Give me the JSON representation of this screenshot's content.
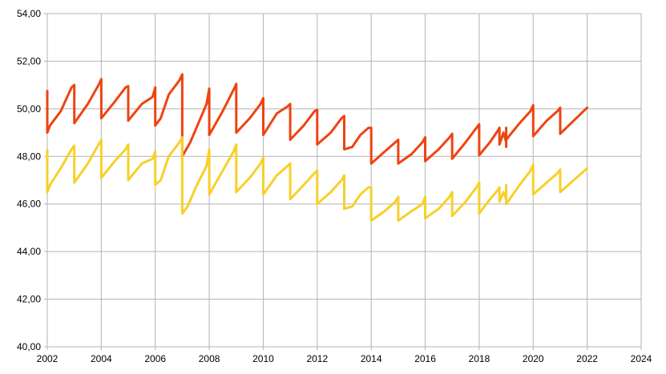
{
  "chart_data": {
    "type": "line",
    "title": "",
    "xlabel": "",
    "ylabel": "",
    "xlim": [
      2002,
      2024
    ],
    "ylim": [
      40,
      54
    ],
    "grid": true,
    "legend": "none",
    "x_ticks": [
      "2002",
      "2004",
      "2006",
      "2008",
      "2010",
      "2012",
      "2014",
      "2016",
      "2018",
      "2020",
      "2022",
      "2024"
    ],
    "y_ticks": [
      "40,00",
      "42,00",
      "44,00",
      "46,00",
      "48,00",
      "50,00",
      "52,00",
      "54,00"
    ],
    "series": [
      {
        "color": "#ee4411",
        "points": [
          [
            2002.0,
            50.75
          ],
          [
            2002.0,
            49.0
          ],
          [
            2002.1,
            49.3
          ],
          [
            2002.5,
            49.9
          ],
          [
            2002.9,
            50.9
          ],
          [
            2003.0,
            51.0
          ],
          [
            2003.0,
            49.4
          ],
          [
            2003.5,
            50.2
          ],
          [
            2003.9,
            51.0
          ],
          [
            2004.0,
            51.25
          ],
          [
            2004.0,
            49.6
          ],
          [
            2004.5,
            50.3
          ],
          [
            2004.9,
            50.9
          ],
          [
            2005.0,
            50.95
          ],
          [
            2005.0,
            49.5
          ],
          [
            2005.5,
            50.2
          ],
          [
            2005.9,
            50.5
          ],
          [
            2006.0,
            50.9
          ],
          [
            2006.0,
            49.3
          ],
          [
            2006.2,
            49.6
          ],
          [
            2006.5,
            50.6
          ],
          [
            2006.9,
            51.2
          ],
          [
            2007.0,
            51.45
          ],
          [
            2007.0,
            48.0
          ],
          [
            2007.3,
            48.6
          ],
          [
            2007.6,
            49.4
          ],
          [
            2007.9,
            50.2
          ],
          [
            2008.0,
            50.85
          ],
          [
            2008.0,
            48.9
          ],
          [
            2008.5,
            49.9
          ],
          [
            2008.9,
            50.8
          ],
          [
            2009.0,
            51.05
          ],
          [
            2009.0,
            49.0
          ],
          [
            2009.5,
            49.6
          ],
          [
            2009.9,
            50.2
          ],
          [
            2010.0,
            50.45
          ],
          [
            2010.0,
            48.9
          ],
          [
            2010.5,
            49.8
          ],
          [
            2010.9,
            50.1
          ],
          [
            2011.0,
            50.2
          ],
          [
            2011.0,
            48.7
          ],
          [
            2011.5,
            49.3
          ],
          [
            2011.9,
            49.9
          ],
          [
            2012.0,
            49.95
          ],
          [
            2012.0,
            48.5
          ],
          [
            2012.5,
            49.0
          ],
          [
            2012.9,
            49.6
          ],
          [
            2013.0,
            49.7
          ],
          [
            2013.0,
            48.3
          ],
          [
            2013.3,
            48.4
          ],
          [
            2013.6,
            48.9
          ],
          [
            2013.9,
            49.2
          ],
          [
            2014.0,
            49.2
          ],
          [
            2014.0,
            47.7
          ],
          [
            2014.5,
            48.2
          ],
          [
            2014.9,
            48.6
          ],
          [
            2015.0,
            48.7
          ],
          [
            2015.0,
            47.7
          ],
          [
            2015.5,
            48.1
          ],
          [
            2015.9,
            48.6
          ],
          [
            2016.0,
            48.8
          ],
          [
            2016.0,
            47.8
          ],
          [
            2016.5,
            48.3
          ],
          [
            2016.9,
            48.8
          ],
          [
            2017.0,
            48.95
          ],
          [
            2017.0,
            47.9
          ],
          [
            2017.5,
            48.6
          ],
          [
            2017.9,
            49.2
          ],
          [
            2018.0,
            49.35
          ],
          [
            2018.0,
            48.05
          ],
          [
            2018.4,
            48.6
          ],
          [
            2018.7,
            49.1
          ],
          [
            2018.75,
            49.2
          ],
          [
            2018.75,
            48.5
          ],
          [
            2018.9,
            49.0
          ],
          [
            2019.0,
            48.6
          ],
          [
            2019.0,
            48.4
          ],
          [
            2019.0,
            49.2
          ],
          [
            2019.0,
            48.7
          ],
          [
            2019.5,
            49.4
          ],
          [
            2019.9,
            49.9
          ],
          [
            2020.0,
            50.15
          ],
          [
            2020.0,
            48.85
          ],
          [
            2020.5,
            49.5
          ],
          [
            2020.9,
            49.9
          ],
          [
            2021.0,
            50.05
          ],
          [
            2021.0,
            48.95
          ],
          [
            2021.5,
            49.5
          ],
          [
            2022.0,
            50.05
          ]
        ]
      },
      {
        "color": "#f7d02a",
        "points": [
          [
            2002.0,
            48.25
          ],
          [
            2002.0,
            46.5
          ],
          [
            2002.1,
            46.8
          ],
          [
            2002.5,
            47.5
          ],
          [
            2002.9,
            48.3
          ],
          [
            2003.0,
            48.45
          ],
          [
            2003.0,
            46.9
          ],
          [
            2003.5,
            47.7
          ],
          [
            2003.9,
            48.5
          ],
          [
            2004.0,
            48.7
          ],
          [
            2004.0,
            47.1
          ],
          [
            2004.5,
            47.8
          ],
          [
            2004.9,
            48.3
          ],
          [
            2005.0,
            48.5
          ],
          [
            2005.0,
            47.0
          ],
          [
            2005.5,
            47.7
          ],
          [
            2005.9,
            47.9
          ],
          [
            2006.0,
            48.2
          ],
          [
            2006.0,
            46.8
          ],
          [
            2006.2,
            47.0
          ],
          [
            2006.5,
            48.0
          ],
          [
            2006.9,
            48.6
          ],
          [
            2007.0,
            48.8
          ],
          [
            2007.0,
            45.6
          ],
          [
            2007.2,
            45.9
          ],
          [
            2007.5,
            46.7
          ],
          [
            2007.9,
            47.6
          ],
          [
            2008.0,
            48.3
          ],
          [
            2008.0,
            46.4
          ],
          [
            2008.5,
            47.4
          ],
          [
            2008.9,
            48.2
          ],
          [
            2009.0,
            48.5
          ],
          [
            2009.0,
            46.5
          ],
          [
            2009.5,
            47.1
          ],
          [
            2009.9,
            47.7
          ],
          [
            2010.0,
            47.95
          ],
          [
            2010.0,
            46.4
          ],
          [
            2010.5,
            47.2
          ],
          [
            2010.9,
            47.6
          ],
          [
            2011.0,
            47.7
          ],
          [
            2011.0,
            46.2
          ],
          [
            2011.5,
            46.8
          ],
          [
            2011.9,
            47.3
          ],
          [
            2012.0,
            47.4
          ],
          [
            2012.0,
            46.0
          ],
          [
            2012.5,
            46.5
          ],
          [
            2012.9,
            47.0
          ],
          [
            2013.0,
            47.2
          ],
          [
            2013.0,
            45.8
          ],
          [
            2013.3,
            45.9
          ],
          [
            2013.6,
            46.4
          ],
          [
            2013.9,
            46.7
          ],
          [
            2014.0,
            46.7
          ],
          [
            2014.0,
            45.3
          ],
          [
            2014.5,
            45.7
          ],
          [
            2014.9,
            46.1
          ],
          [
            2015.0,
            46.3
          ],
          [
            2015.0,
            45.3
          ],
          [
            2015.5,
            45.7
          ],
          [
            2015.9,
            46.0
          ],
          [
            2016.0,
            46.3
          ],
          [
            2016.0,
            45.4
          ],
          [
            2016.5,
            45.8
          ],
          [
            2016.9,
            46.3
          ],
          [
            2017.0,
            46.5
          ],
          [
            2017.0,
            45.5
          ],
          [
            2017.5,
            46.1
          ],
          [
            2017.9,
            46.7
          ],
          [
            2018.0,
            46.9
          ],
          [
            2018.0,
            45.6
          ],
          [
            2018.4,
            46.2
          ],
          [
            2018.7,
            46.6
          ],
          [
            2018.75,
            46.7
          ],
          [
            2018.75,
            46.1
          ],
          [
            2018.9,
            46.5
          ],
          [
            2019.0,
            46.2
          ],
          [
            2019.0,
            46.0
          ],
          [
            2019.0,
            46.8
          ],
          [
            2019.0,
            46.0
          ],
          [
            2019.5,
            46.8
          ],
          [
            2019.9,
            47.4
          ],
          [
            2020.0,
            47.65
          ],
          [
            2020.0,
            46.4
          ],
          [
            2020.5,
            46.9
          ],
          [
            2020.9,
            47.3
          ],
          [
            2021.0,
            47.45
          ],
          [
            2021.0,
            46.5
          ],
          [
            2021.5,
            47.0
          ],
          [
            2022.0,
            47.5
          ]
        ]
      }
    ]
  }
}
